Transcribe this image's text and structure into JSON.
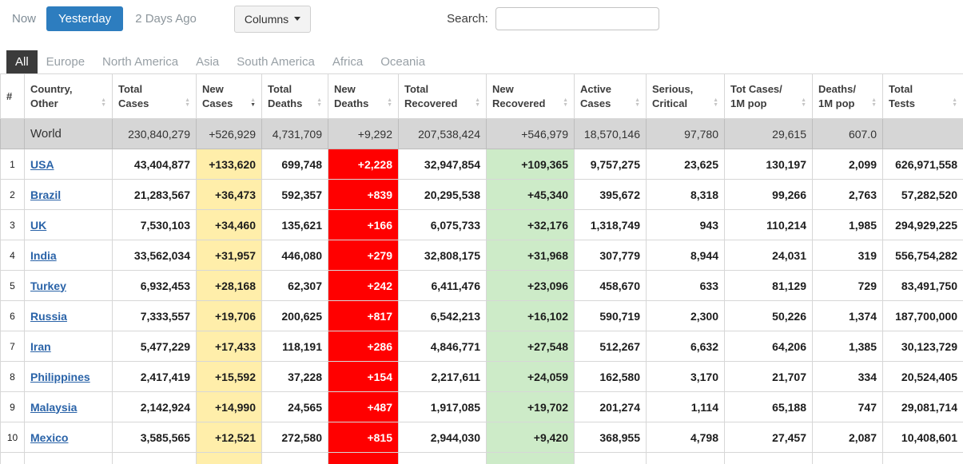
{
  "toolbar": {
    "now": "Now",
    "yesterday": "Yesterday",
    "two_days_ago": "2 Days Ago",
    "columns": "Columns",
    "search_label": "Search:",
    "search_value": ""
  },
  "tabs": [
    {
      "label": "All",
      "active": true
    },
    {
      "label": "Europe",
      "active": false
    },
    {
      "label": "North America",
      "active": false
    },
    {
      "label": "Asia",
      "active": false
    },
    {
      "label": "South America",
      "active": false
    },
    {
      "label": "Africa",
      "active": false
    },
    {
      "label": "Oceania",
      "active": false
    }
  ],
  "table": {
    "headers": [
      {
        "key": "rank",
        "line1": "#",
        "line2": "",
        "sortable": false,
        "sort": "none"
      },
      {
        "key": "country",
        "line1": "Country,",
        "line2": "Other",
        "sortable": true,
        "sort": "none"
      },
      {
        "key": "total-cases",
        "line1": "Total",
        "line2": "Cases",
        "sortable": true,
        "sort": "none"
      },
      {
        "key": "new-cases",
        "line1": "New",
        "line2": "Cases",
        "sortable": true,
        "sort": "desc"
      },
      {
        "key": "total-deaths",
        "line1": "Total",
        "line2": "Deaths",
        "sortable": true,
        "sort": "none"
      },
      {
        "key": "new-deaths",
        "line1": "New",
        "line2": "Deaths",
        "sortable": true,
        "sort": "none"
      },
      {
        "key": "total-recovered",
        "line1": "Total",
        "line2": "Recovered",
        "sortable": true,
        "sort": "none"
      },
      {
        "key": "new-recovered",
        "line1": "New",
        "line2": "Recovered",
        "sortable": true,
        "sort": "none"
      },
      {
        "key": "active-cases",
        "line1": "Active",
        "line2": "Cases",
        "sortable": true,
        "sort": "none"
      },
      {
        "key": "serious-critical",
        "line1": "Serious,",
        "line2": "Critical",
        "sortable": true,
        "sort": "none"
      },
      {
        "key": "tot-cases-per-1m",
        "line1": "Tot Cases/",
        "line2": "1M pop",
        "sortable": true,
        "sort": "none"
      },
      {
        "key": "deaths-per-1m",
        "line1": "Deaths/",
        "line2": "1M pop",
        "sortable": true,
        "sort": "none"
      },
      {
        "key": "total-tests",
        "line1": "Total",
        "line2": "Tests",
        "sortable": true,
        "sort": "none"
      }
    ],
    "world_row": {
      "label": "World",
      "cells": [
        "230,840,279",
        "+526,929",
        "4,731,709",
        "+9,292",
        "207,538,424",
        "+546,979",
        "18,570,146",
        "97,780",
        "29,615",
        "607.0",
        ""
      ]
    },
    "rows": [
      {
        "rank": "1",
        "country": "USA",
        "cells": [
          "43,404,877",
          "+133,620",
          "699,748",
          "+2,228",
          "32,947,854",
          "+109,365",
          "9,757,275",
          "23,625",
          "130,197",
          "2,099",
          "626,971,558"
        ]
      },
      {
        "rank": "2",
        "country": "Brazil",
        "cells": [
          "21,283,567",
          "+36,473",
          "592,357",
          "+839",
          "20,295,538",
          "+45,340",
          "395,672",
          "8,318",
          "99,266",
          "2,763",
          "57,282,520"
        ]
      },
      {
        "rank": "3",
        "country": "UK",
        "cells": [
          "7,530,103",
          "+34,460",
          "135,621",
          "+166",
          "6,075,733",
          "+32,176",
          "1,318,749",
          "943",
          "110,214",
          "1,985",
          "294,929,225"
        ]
      },
      {
        "rank": "4",
        "country": "India",
        "cells": [
          "33,562,034",
          "+31,957",
          "446,080",
          "+279",
          "32,808,175",
          "+31,968",
          "307,779",
          "8,944",
          "24,031",
          "319",
          "556,754,282"
        ]
      },
      {
        "rank": "5",
        "country": "Turkey",
        "cells": [
          "6,932,453",
          "+28,168",
          "62,307",
          "+242",
          "6,411,476",
          "+23,096",
          "458,670",
          "633",
          "81,129",
          "729",
          "83,491,750"
        ]
      },
      {
        "rank": "6",
        "country": "Russia",
        "cells": [
          "7,333,557",
          "+19,706",
          "200,625",
          "+817",
          "6,542,213",
          "+16,102",
          "590,719",
          "2,300",
          "50,226",
          "1,374",
          "187,700,000"
        ]
      },
      {
        "rank": "7",
        "country": "Iran",
        "cells": [
          "5,477,229",
          "+17,433",
          "118,191",
          "+286",
          "4,846,771",
          "+27,548",
          "512,267",
          "6,632",
          "64,206",
          "1,385",
          "30,123,729"
        ]
      },
      {
        "rank": "8",
        "country": "Philippines",
        "cells": [
          "2,417,419",
          "+15,592",
          "37,228",
          "+154",
          "2,217,611",
          "+24,059",
          "162,580",
          "3,170",
          "21,707",
          "334",
          "20,524,405"
        ]
      },
      {
        "rank": "9",
        "country": "Malaysia",
        "cells": [
          "2,142,924",
          "+14,990",
          "24,565",
          "+487",
          "1,917,085",
          "+19,702",
          "201,274",
          "1,114",
          "65,188",
          "747",
          "29,081,714"
        ]
      },
      {
        "rank": "10",
        "country": "Mexico",
        "cells": [
          "3,585,565",
          "+12,521",
          "272,580",
          "+815",
          "2,944,030",
          "+9,420",
          "368,955",
          "4,798",
          "27,457",
          "2,087",
          "10,408,601"
        ]
      }
    ]
  },
  "colors": {
    "new_cases_bg": "#FFEEAA",
    "new_deaths_bg": "#FF0000",
    "new_deaths_text": "#FFFFFF",
    "new_recovered_bg": "#CDEBC8",
    "world_row_bg": "#D6D6D6",
    "active_tab_bg": "#3B3B3B",
    "primary_button_bg": "#2D7DBF",
    "country_link": "#2A63A8"
  }
}
